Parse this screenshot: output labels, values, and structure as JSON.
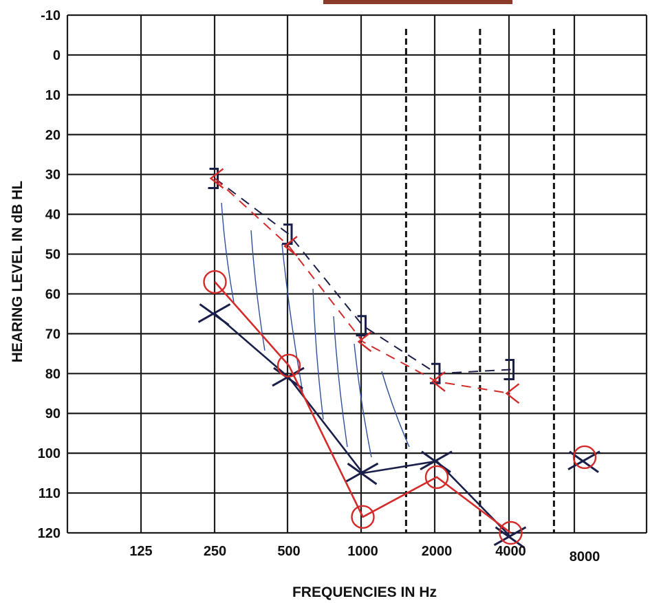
{
  "chart_data": {
    "type": "line",
    "title": "",
    "xlabel": "FREQUENCIES IN Hz",
    "ylabel": "HEARING LEVEL IN dB HL",
    "x_ticks": [
      "125",
      "250",
      "500",
      "1000",
      "2000",
      "4000",
      "8000"
    ],
    "y_ticks": [
      "-10",
      "0",
      "10",
      "20",
      "30",
      "40",
      "50",
      "60",
      "70",
      "80",
      "90",
      "100",
      "110",
      "120"
    ],
    "ylim": [
      -10,
      120
    ],
    "y_inverted": true,
    "x_scale": "log2 (octave)",
    "grid": true,
    "dashed_verticals_hz": [
      1500,
      3000,
      6000
    ],
    "series": [
      {
        "marker": "X",
        "line": "solid",
        "color": "#1a1f4a",
        "points": [
          [
            250,
            65
          ],
          [
            500,
            81
          ],
          [
            1000,
            105
          ],
          [
            2000,
            102
          ],
          [
            4000,
            121
          ],
          [
            8000,
            102
          ]
        ]
      },
      {
        "marker": "O",
        "line": "solid",
        "color": "#d42a2a",
        "points": [
          [
            250,
            57
          ],
          [
            500,
            78
          ],
          [
            1000,
            116
          ],
          [
            2000,
            106
          ],
          [
            4000,
            120
          ],
          [
            8000,
            101
          ]
        ]
      },
      {
        "marker": "]",
        "line": "dashed",
        "color": "#1a1f4a",
        "points": [
          [
            250,
            31
          ],
          [
            500,
            45
          ],
          [
            1000,
            68
          ],
          [
            2000,
            80
          ],
          [
            4000,
            79
          ]
        ]
      },
      {
        "marker": "<",
        "line": "dashed",
        "color": "#d42a2a",
        "points": [
          [
            250,
            31
          ],
          [
            500,
            48
          ],
          [
            1000,
            72
          ],
          [
            2000,
            82
          ],
          [
            4000,
            85
          ]
        ]
      }
    ]
  }
}
